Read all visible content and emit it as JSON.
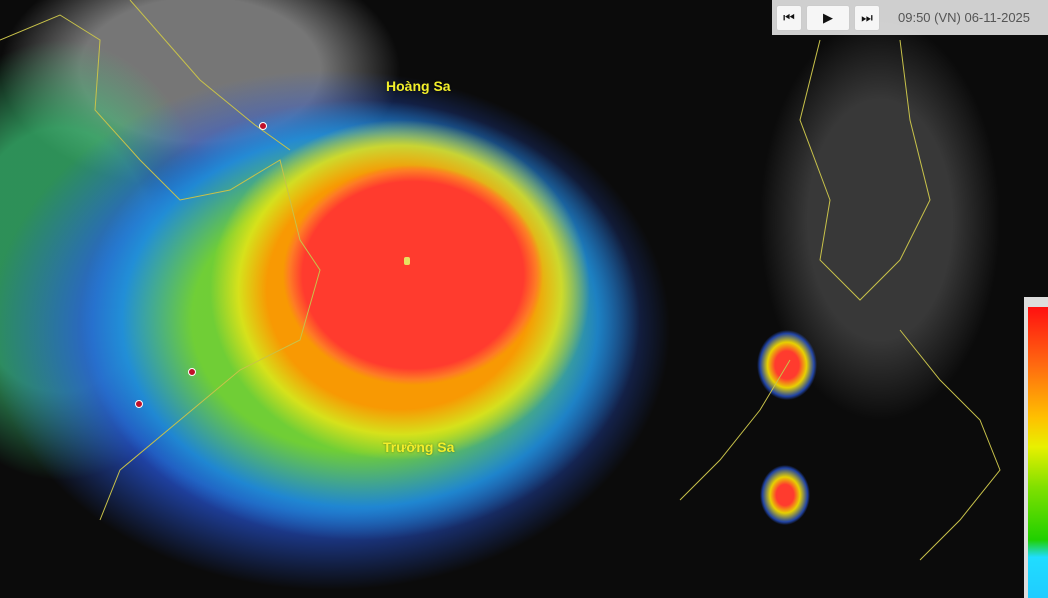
{
  "map": {
    "labels": {
      "hoang_sa": "Hoàng Sa",
      "truong_sa": "Trường Sa"
    },
    "storm_eye_color": "#ff3b2e"
  },
  "controls": {
    "prev_icon": "skip-back-icon",
    "play_icon": "play-icon",
    "next_icon": "skip-forward-icon",
    "prev_glyph": "⏮",
    "play_glyph": "▶",
    "next_glyph": "⏭",
    "timestamp": "09:50 (VN) 06-11-2025"
  },
  "color_scale": {
    "colors": [
      "#ff1010",
      "#ff6a10",
      "#ffc000",
      "#e8f000",
      "#80e000",
      "#20d000",
      "#20ddff"
    ]
  }
}
